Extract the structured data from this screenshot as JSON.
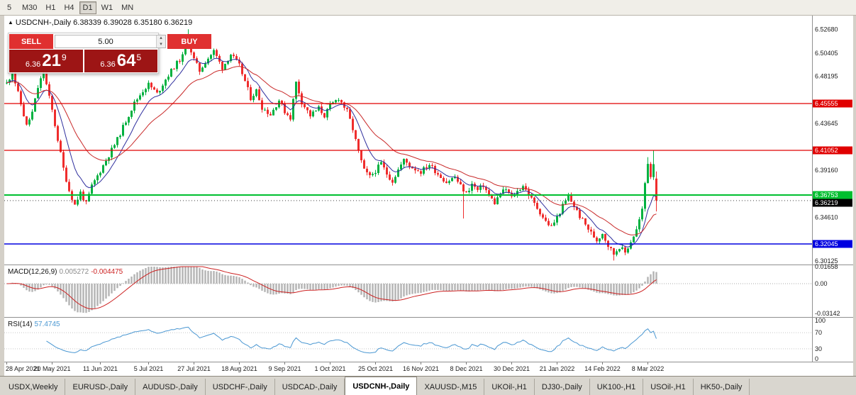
{
  "toolbar": {
    "timeframes": [
      "5",
      "M30",
      "H1",
      "H4",
      "D1",
      "W1",
      "MN"
    ],
    "active_timeframe": "D1"
  },
  "chart": {
    "expand_icon": "▲",
    "symbol": "USDCNH-,Daily",
    "o": "6.38339",
    "h": "6.39028",
    "l": "6.35180",
    "c": "6.36219"
  },
  "trade_panel": {
    "sell_label": "SELL",
    "buy_label": "BUY",
    "volume": "5.00",
    "spin_up_icon": "▴",
    "spin_down_icon": "▾",
    "sell_price_small": "6.36",
    "sell_price_big": "21",
    "sell_price_sup": "9",
    "buy_price_small": "6.36",
    "buy_price_big": "64",
    "buy_price_sup": "5"
  },
  "tabs": {
    "items": [
      "USDX,Weekly",
      "EURUSD-,Daily",
      "AUDUSD-,Daily",
      "USDCHF-,Daily",
      "USDCAD-,Daily",
      "USDCNH-,Daily",
      "XAUUSD-,M15",
      "UKOil-,H1",
      "DJ30-,Daily",
      "UK100-,H1",
      "USOil-,H1",
      "HK50-,Daily"
    ],
    "active_index": 5
  },
  "colors": {
    "up": "#00b140",
    "down": "#ef2d2d",
    "ma_fast": "#2f2f9e",
    "ma_slow": "#c92a2a",
    "macd_hist": "#b3b3b3",
    "macd_signal": "#cc2222",
    "rsi_line": "#4a97d2",
    "level_red": "#e00000",
    "level_green": "#00bf2f",
    "level_blue": "#0000e0",
    "current_bg": "#000000"
  },
  "chart_data": {
    "type": "candlestick",
    "symbol": "USDCNH",
    "timeframe": "Daily",
    "bar_count": 230,
    "seed": 11,
    "price_top": 6.5361,
    "price_bottom": 6.3041,
    "close_anchors": [
      [
        0,
        6.475
      ],
      [
        2,
        6.486
      ],
      [
        5,
        6.455
      ],
      [
        7,
        6.434
      ],
      [
        9,
        6.447
      ],
      [
        11,
        6.471
      ],
      [
        13,
        6.486
      ],
      [
        16,
        6.449
      ],
      [
        18,
        6.421
      ],
      [
        20,
        6.393
      ],
      [
        22,
        6.372
      ],
      [
        24,
        6.358
      ],
      [
        26,
        6.37
      ],
      [
        28,
        6.359
      ],
      [
        30,
        6.376
      ],
      [
        33,
        6.391
      ],
      [
        36,
        6.406
      ],
      [
        39,
        6.421
      ],
      [
        42,
        6.439
      ],
      [
        45,
        6.456
      ],
      [
        48,
        6.468
      ],
      [
        50,
        6.474
      ],
      [
        53,
        6.465
      ],
      [
        56,
        6.479
      ],
      [
        59,
        6.491
      ],
      [
        62,
        6.501
      ],
      [
        64,
        6.514
      ],
      [
        66,
        6.498
      ],
      [
        68,
        6.487
      ],
      [
        70,
        6.496
      ],
      [
        73,
        6.506
      ],
      [
        76,
        6.49
      ],
      [
        79,
        6.503
      ],
      [
        82,
        6.492
      ],
      [
        84,
        6.477
      ],
      [
        86,
        6.461
      ],
      [
        88,
        6.468
      ],
      [
        90,
        6.452
      ],
      [
        93,
        6.445
      ],
      [
        96,
        6.459
      ],
      [
        98,
        6.448
      ],
      [
        100,
        6.442
      ],
      [
        102,
        6.476
      ],
      [
        104,
        6.457
      ],
      [
        107,
        6.444
      ],
      [
        110,
        6.451
      ],
      [
        112,
        6.444
      ],
      [
        114,
        6.453
      ],
      [
        117,
        6.461
      ],
      [
        120,
        6.448
      ],
      [
        122,
        6.431
      ],
      [
        124,
        6.409
      ],
      [
        126,
        6.391
      ],
      [
        128,
        6.385
      ],
      [
        130,
        6.391
      ],
      [
        132,
        6.398
      ],
      [
        134,
        6.388
      ],
      [
        136,
        6.381
      ],
      [
        138,
        6.392
      ],
      [
        140,
        6.401
      ],
      [
        143,
        6.394
      ],
      [
        146,
        6.39
      ],
      [
        149,
        6.397
      ],
      [
        152,
        6.388
      ],
      [
        155,
        6.38
      ],
      [
        158,
        6.385
      ],
      [
        160,
        6.376
      ],
      [
        162,
        6.369
      ],
      [
        164,
        6.378
      ],
      [
        166,
        6.372
      ],
      [
        168,
        6.377
      ],
      [
        170,
        6.367
      ],
      [
        172,
        6.36
      ],
      [
        174,
        6.369
      ],
      [
        176,
        6.373
      ],
      [
        178,
        6.365
      ],
      [
        180,
        6.371
      ],
      [
        182,
        6.377
      ],
      [
        184,
        6.368
      ],
      [
        186,
        6.359
      ],
      [
        188,
        6.351
      ],
      [
        190,
        6.342
      ],
      [
        192,
        6.337
      ],
      [
        194,
        6.346
      ],
      [
        196,
        6.357
      ],
      [
        198,
        6.366
      ],
      [
        200,
        6.357
      ],
      [
        202,
        6.347
      ],
      [
        204,
        6.339
      ],
      [
        206,
        6.331
      ],
      [
        208,
        6.324
      ],
      [
        210,
        6.331
      ],
      [
        212,
        6.319
      ],
      [
        214,
        6.311
      ],
      [
        216,
        6.318
      ],
      [
        218,
        6.312
      ],
      [
        220,
        6.323
      ],
      [
        222,
        6.334
      ],
      [
        224,
        6.353
      ],
      [
        225,
        6.379
      ],
      [
        226,
        6.399
      ],
      [
        227,
        6.386
      ],
      [
        228,
        6.399
      ],
      [
        229,
        6.36219
      ]
    ],
    "pinned_candles": {
      "64": {
        "h": 6.527
      },
      "161": {
        "l": 6.345
      },
      "214": {
        "l": 6.3045
      },
      "226": {
        "h": 6.404
      },
      "228": {
        "h": 6.4105
      },
      "229": {
        "o": 6.38339,
        "h": 6.39028,
        "l": 6.3518,
        "c": 6.36219
      }
    },
    "moving_averages": [
      {
        "period": 9,
        "color": "#2f2f9e"
      },
      {
        "period": 25,
        "color": "#c92a2a"
      }
    ],
    "levels": [
      {
        "text": "6.45555",
        "v": 6.45555,
        "color": "#e00000",
        "w": 1.2
      },
      {
        "text": "6.41052",
        "v": 6.41052,
        "color": "#e00000",
        "w": 1.2
      },
      {
        "text": "6.36753",
        "v": 6.36753,
        "color": "#00bf2f",
        "w": 2
      },
      {
        "text": "6.32045",
        "v": 6.32045,
        "color": "#0000e0",
        "w": 1.5
      }
    ],
    "current_price": {
      "text": "6.36219",
      "v": 6.36219
    },
    "y_labels": [
      {
        "text": "6.52680",
        "v": 6.5268
      },
      {
        "text": "6.50405",
        "v": 6.50405
      },
      {
        "text": "6.48195",
        "v": 6.48195
      },
      {
        "text": "6.43645",
        "v": 6.43645
      },
      {
        "text": "6.39160",
        "v": 6.3916
      },
      {
        "text": "6.34610",
        "v": 6.3461
      },
      {
        "text": "6.30125",
        "v": 6.30125
      }
    ],
    "x_labels": [
      {
        "text": "28 Apr 2021",
        "i": 0
      },
      {
        "text": "20 May 2021",
        "i": 16
      },
      {
        "text": "11 Jun 2021",
        "i": 33
      },
      {
        "text": "5 Jul 2021",
        "i": 50
      },
      {
        "text": "27 Jul 2021",
        "i": 66
      },
      {
        "text": "18 Aug 2021",
        "i": 82
      },
      {
        "text": "9 Sep 2021",
        "i": 98
      },
      {
        "text": "1 Oct 2021",
        "i": 114
      },
      {
        "text": "25 Oct 2021",
        "i": 130
      },
      {
        "text": "16 Nov 2021",
        "i": 146
      },
      {
        "text": "8 Dec 2021",
        "i": 162
      },
      {
        "text": "30 Dec 2021",
        "i": 178
      },
      {
        "text": "21 Jan 2022",
        "i": 194
      },
      {
        "text": "14 Feb 2022",
        "i": 210
      },
      {
        "text": "8 Mar 2022",
        "i": 226
      }
    ],
    "indicators": {
      "macd": {
        "name": "MACD(12,26,9)",
        "value": "0.005272",
        "signal_value": "-0.004475",
        "fast": 12,
        "slow": 26,
        "signal": 9,
        "axis": [
          {
            "text": "0.01658",
            "v": 0.01658
          },
          {
            "text": "0.00",
            "v": 0
          },
          {
            "text": "-0.03142",
            "v": -0.03142
          }
        ]
      },
      "rsi": {
        "name": "RSI(14)",
        "value": "57.4745",
        "period": 14,
        "axis": [
          {
            "text": "100",
            "v": 100
          },
          {
            "text": "70",
            "v": 70
          },
          {
            "text": "30",
            "v": 30
          },
          {
            "text": "0",
            "v": 0
          }
        ]
      }
    }
  }
}
